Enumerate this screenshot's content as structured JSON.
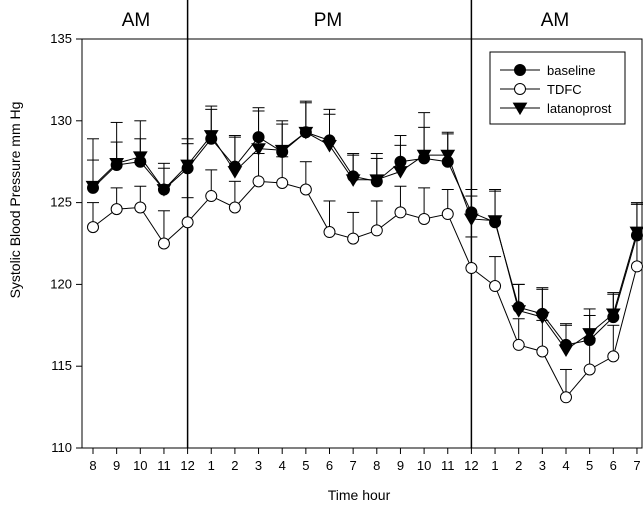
{
  "chart_data": {
    "type": "line",
    "title": "",
    "xlabel": "Time hour",
    "ylabel": "Systolic Blood Pressure mm Hg",
    "ylim": [
      110,
      135
    ],
    "yticks": [
      110,
      115,
      120,
      125,
      130,
      135
    ],
    "x_tick_labels": [
      "8",
      "9",
      "10",
      "11",
      "12",
      "1",
      "2",
      "3",
      "4",
      "5",
      "6",
      "7",
      "8",
      "9",
      "10",
      "11",
      "12",
      "1",
      "2",
      "3",
      "4",
      "5",
      "6",
      "7"
    ],
    "period_labels": [
      "AM",
      "PM",
      "AM"
    ],
    "period_dividers_after_index": [
      4,
      16
    ],
    "legend_position": "top-right",
    "error_bars": "upper",
    "series": [
      {
        "name": "baseline",
        "marker": "filled-circle",
        "values": [
          125.9,
          127.3,
          127.5,
          125.8,
          127.1,
          128.9,
          127.2,
          129.0,
          128.1,
          129.3,
          128.8,
          126.6,
          126.3,
          127.5,
          127.7,
          127.5,
          124.4,
          123.8,
          118.6,
          118.2,
          116.3,
          116.6,
          118.0,
          123.0
        ],
        "errors": [
          1.7,
          1.4,
          1.4,
          1.3,
          1.5,
          1.8,
          1.9,
          1.6,
          1.7,
          1.8,
          1.6,
          1.3,
          1.4,
          1.6,
          1.9,
          1.7,
          1.4,
          1.9,
          1.4,
          1.6,
          1.2,
          1.5,
          1.5,
          1.9
        ]
      },
      {
        "name": "TDFC",
        "marker": "open-circle",
        "values": [
          123.5,
          124.6,
          124.7,
          122.5,
          123.8,
          125.4,
          124.7,
          126.3,
          126.2,
          125.8,
          123.2,
          122.8,
          123.3,
          124.4,
          124.0,
          124.3,
          121.0,
          119.9,
          116.3,
          115.9,
          113.1,
          114.8,
          115.6,
          121.1
        ],
        "errors": [
          1.5,
          1.3,
          1.3,
          2.0,
          1.5,
          1.6,
          1.6,
          1.7,
          1.6,
          1.7,
          1.9,
          1.6,
          1.8,
          1.6,
          1.9,
          1.5,
          1.9,
          1.8,
          1.6,
          1.9,
          1.7,
          1.9,
          1.9,
          3.8
        ]
      },
      {
        "name": "latanoprost",
        "marker": "filled-triangle-down",
        "values": [
          126.0,
          127.4,
          127.8,
          125.8,
          127.3,
          129.1,
          126.9,
          128.3,
          128.2,
          129.3,
          128.5,
          126.4,
          126.4,
          126.9,
          127.9,
          127.9,
          124.0,
          123.9,
          118.4,
          118.0,
          116.0,
          117.0,
          118.2,
          123.2
        ],
        "errors": [
          2.9,
          2.5,
          2.2,
          1.6,
          1.6,
          1.8,
          2.1,
          2.5,
          1.8,
          1.9,
          2.2,
          1.6,
          1.6,
          1.6,
          2.6,
          1.4,
          1.4,
          1.9,
          1.6,
          1.7,
          1.6,
          1.5,
          1.2,
          1.8
        ]
      }
    ]
  }
}
